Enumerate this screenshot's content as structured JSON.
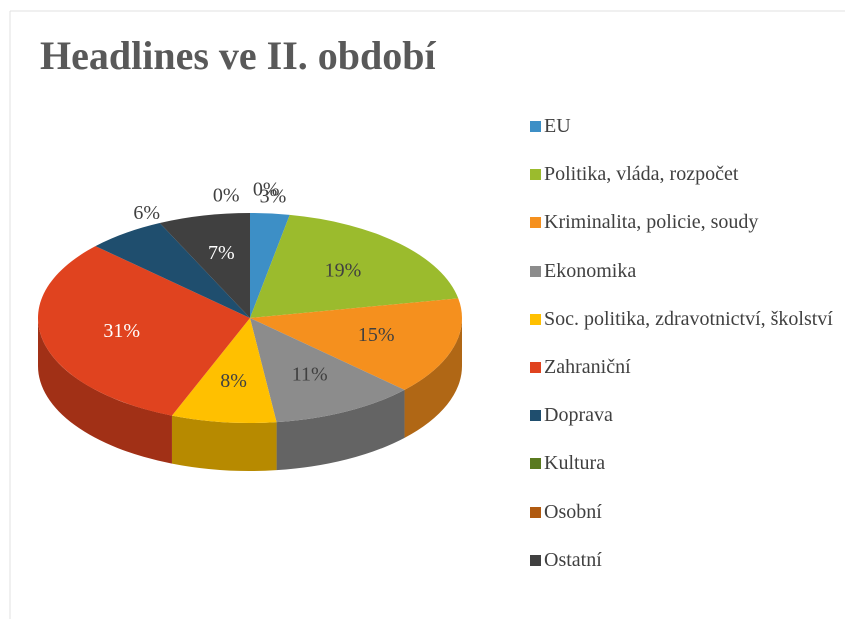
{
  "chart_data": {
    "type": "pie",
    "title": "Headlines ve II. období",
    "categories": [
      "EU",
      "Politika, vláda, rozpočet",
      "Kriminalita, policie, soudy",
      "Ekonomika",
      "Soc. politika, zdravotnictví, školství",
      "Zahraniční",
      "Doprava",
      "Kultura",
      "Osobní",
      "Ostatní"
    ],
    "values": [
      3,
      19,
      15,
      11,
      8,
      31,
      6,
      0,
      0,
      7
    ],
    "value_labels": [
      "3%",
      "19%",
      "15%",
      "11%",
      "8%",
      "31%",
      "6%",
      "0%",
      "0%",
      "7%"
    ],
    "colors": [
      "#3d8fc6",
      "#9bbb2d",
      "#f5901e",
      "#8c8c8c",
      "#ffc000",
      "#e0431f",
      "#1f4e6e",
      "#5a7a1f",
      "#b05a10",
      "#404040"
    ],
    "legend": "right"
  }
}
